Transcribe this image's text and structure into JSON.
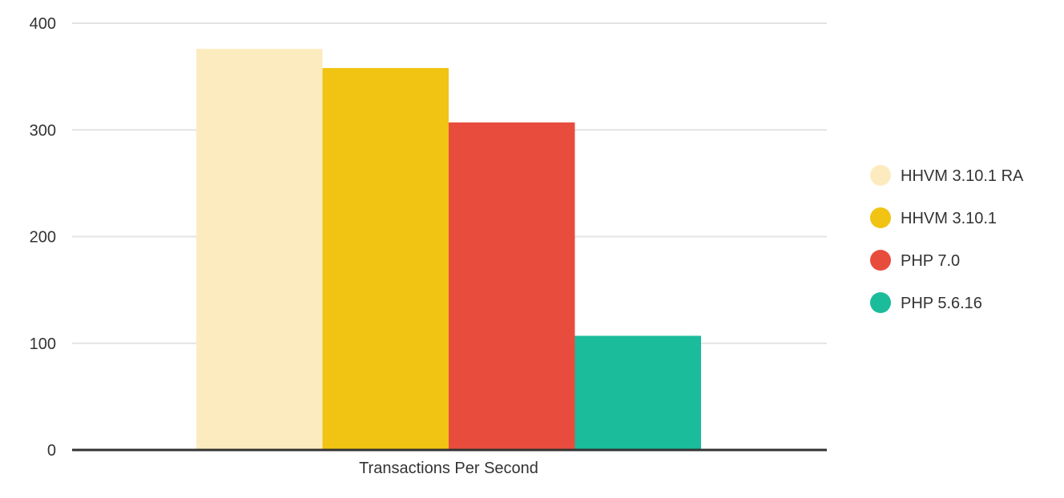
{
  "chart_data": {
    "type": "bar",
    "title": "",
    "xlabel": "",
    "ylabel": "",
    "categories": [
      "Transactions Per Second"
    ],
    "ylim": [
      0,
      400
    ],
    "yticks": [
      "0",
      "100",
      "200",
      "300",
      "400"
    ],
    "grid": true,
    "legend_position": "right",
    "series": [
      {
        "name": "HHVM 3.10.1 RA",
        "values": [
          376
        ],
        "color": "#fdebc0"
      },
      {
        "name": "HHVM 3.10.1",
        "values": [
          358
        ],
        "color": "#f1c312"
      },
      {
        "name": "PHP 7.0",
        "values": [
          307
        ],
        "color": "#e84c3d"
      },
      {
        "name": "PHP 5.6.16",
        "values": [
          107
        ],
        "color": "#1abc9c"
      }
    ]
  },
  "colors": {
    "grid": "#e3e3e3",
    "axis": "#333333",
    "text": "#333333"
  }
}
